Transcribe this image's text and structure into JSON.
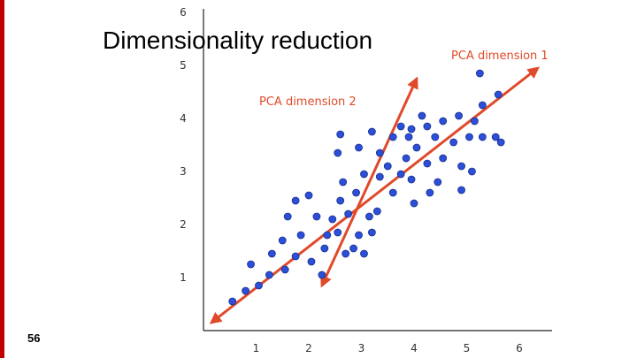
{
  "slide": {
    "title": "Dimensionality reduction",
    "page_number": "56"
  },
  "colors": {
    "accent_bar": "#c00000",
    "arrow": "#e04a2a",
    "point": "#2b4fd8",
    "point_stroke": "#1a2f8a",
    "axis": "#222222"
  },
  "chart_data": {
    "type": "scatter",
    "title": "",
    "xlabel": "",
    "ylabel": "",
    "xlim": [
      0,
      6.7
    ],
    "ylim": [
      0,
      6
    ],
    "x_ticks": [
      "1",
      "2",
      "3",
      "4",
      "5",
      "6"
    ],
    "y_ticks": [
      "1",
      "2",
      "3",
      "4",
      "5",
      "6"
    ],
    "annotations": [
      {
        "label": "PCA dimension 1",
        "from": [
          0.15,
          0.15
        ],
        "to": [
          6.35,
          4.95
        ]
      },
      {
        "label": "PCA dimension 2",
        "from": [
          2.25,
          0.85
        ],
        "to": [
          4.05,
          4.75
        ]
      }
    ],
    "points": [
      [
        0.55,
        0.55
      ],
      [
        0.8,
        0.75
      ],
      [
        1.05,
        0.85
      ],
      [
        0.9,
        1.25
      ],
      [
        1.25,
        1.05
      ],
      [
        1.3,
        1.45
      ],
      [
        1.55,
        1.15
      ],
      [
        1.5,
        1.7
      ],
      [
        1.75,
        1.4
      ],
      [
        1.85,
        1.8
      ],
      [
        1.6,
        2.15
      ],
      [
        1.75,
        2.45
      ],
      [
        2.0,
        2.55
      ],
      [
        2.15,
        2.15
      ],
      [
        2.05,
        1.3
      ],
      [
        2.25,
        1.05
      ],
      [
        2.3,
        1.55
      ],
      [
        2.35,
        1.8
      ],
      [
        2.45,
        2.1
      ],
      [
        2.55,
        1.85
      ],
      [
        2.7,
        1.45
      ],
      [
        2.85,
        1.55
      ],
      [
        2.6,
        2.45
      ],
      [
        2.65,
        2.8
      ],
      [
        2.75,
        2.2
      ],
      [
        2.95,
        1.8
      ],
      [
        3.05,
        1.45
      ],
      [
        3.2,
        1.85
      ],
      [
        3.3,
        2.25
      ],
      [
        3.15,
        2.15
      ],
      [
        2.9,
        2.6
      ],
      [
        3.05,
        2.95
      ],
      [
        2.55,
        3.35
      ],
      [
        2.6,
        3.7
      ],
      [
        2.95,
        3.45
      ],
      [
        3.2,
        3.75
      ],
      [
        3.35,
        3.35
      ],
      [
        3.5,
        3.1
      ],
      [
        3.35,
        2.9
      ],
      [
        3.6,
        2.6
      ],
      [
        3.75,
        2.95
      ],
      [
        3.85,
        3.25
      ],
      [
        3.95,
        2.85
      ],
      [
        3.6,
        3.65
      ],
      [
        3.75,
        3.85
      ],
      [
        3.9,
        3.65
      ],
      [
        4.05,
        3.45
      ],
      [
        3.95,
        3.8
      ],
      [
        4.25,
        3.85
      ],
      [
        4.0,
        2.4
      ],
      [
        4.3,
        2.6
      ],
      [
        4.45,
        2.8
      ],
      [
        4.55,
        3.25
      ],
      [
        4.25,
        3.15
      ],
      [
        4.4,
        3.65
      ],
      [
        4.55,
        3.95
      ],
      [
        4.15,
        4.05
      ],
      [
        4.75,
        3.55
      ],
      [
        4.9,
        3.1
      ],
      [
        5.05,
        3.65
      ],
      [
        5.15,
        3.95
      ],
      [
        5.3,
        3.65
      ],
      [
        5.55,
        3.65
      ],
      [
        5.65,
        3.55
      ],
      [
        5.6,
        4.45
      ],
      [
        5.3,
        4.25
      ],
      [
        5.1,
        3.0
      ],
      [
        4.85,
        4.05
      ],
      [
        5.25,
        4.85
      ],
      [
        4.9,
        2.65
      ]
    ]
  }
}
